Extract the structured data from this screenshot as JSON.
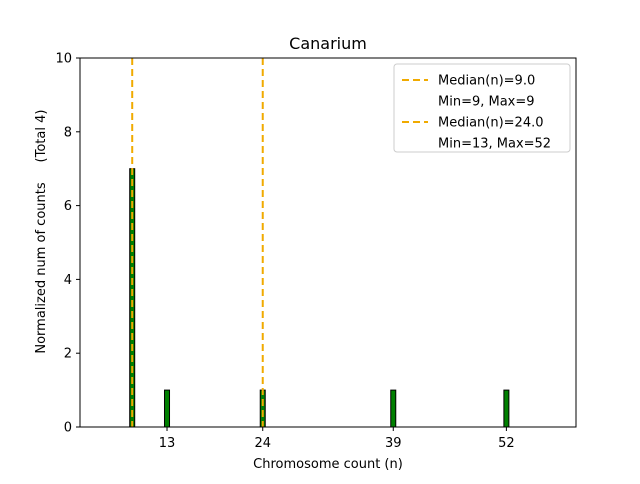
{
  "chart_data": {
    "type": "bar",
    "title": "Canarium",
    "xlabel": "Chromosome count (n)",
    "ylabel": "Normalized num of counts",
    "ylabel_note": "(Total 4)",
    "xlim": [
      3,
      60
    ],
    "ylim": [
      0,
      10
    ],
    "yticks": [
      0,
      2,
      4,
      6,
      8,
      10
    ],
    "xticks": [
      13,
      24,
      39,
      52
    ],
    "bar_color": "#008000",
    "bar_edge_color": "#000000",
    "median_line_color": "#f0aa00",
    "bars": [
      {
        "x": 9,
        "value": 7
      },
      {
        "x": 13,
        "value": 1
      },
      {
        "x": 24,
        "value": 1
      },
      {
        "x": 39,
        "value": 1
      },
      {
        "x": 52,
        "value": 1
      }
    ],
    "median_lines": [
      {
        "x": 9.0,
        "label": "Median(n)=9.0",
        "range_label": "Min=9, Max=9"
      },
      {
        "x": 24.0,
        "label": "Median(n)=24.0",
        "range_label": "Min=13, Max=52"
      }
    ],
    "legend_position": "top-right",
    "grid": false
  }
}
